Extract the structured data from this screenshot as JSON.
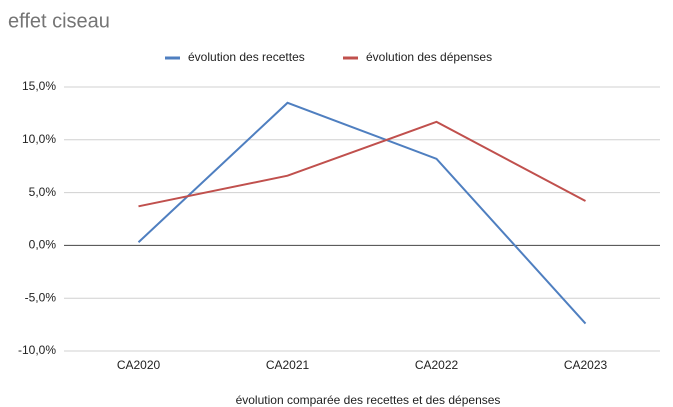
{
  "chart_data": {
    "type": "line",
    "title": "effet ciseau",
    "x_label": "évolution comparée des recettes et des dépenses",
    "categories": [
      "CA2020",
      "CA2021",
      "CA2022",
      "CA2023"
    ],
    "series": [
      {
        "name": "évolution des recettes",
        "color": "#4f7fc0",
        "values": [
          0.3,
          13.5,
          8.2,
          -7.4
        ]
      },
      {
        "name": "évolution des dépenses",
        "color": "#c0504d",
        "values": [
          3.7,
          6.6,
          11.7,
          4.2
        ]
      }
    ],
    "ylim": [
      -10,
      15
    ],
    "yticks": [
      {
        "value": -10,
        "label": "-10,0%"
      },
      {
        "value": -5,
        "label": "-5,0%"
      },
      {
        "value": 0,
        "label": "0,0%"
      },
      {
        "value": 5,
        "label": "5,0%"
      },
      {
        "value": 10,
        "label": "10,0%"
      },
      {
        "value": 15,
        "label": "15,0%"
      }
    ],
    "grid": true,
    "legend": "top"
  }
}
